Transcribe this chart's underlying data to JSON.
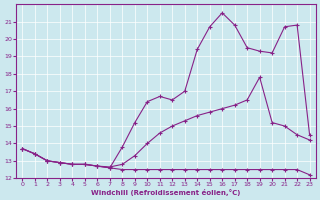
{
  "xlabel": "Windchill (Refroidissement éolien,°C)",
  "background_color": "#cce8ee",
  "line_color": "#882288",
  "xlim": [
    -0.5,
    23.5
  ],
  "ylim": [
    12,
    22
  ],
  "yticks": [
    12,
    13,
    14,
    15,
    16,
    17,
    18,
    19,
    20,
    21
  ],
  "xticks": [
    0,
    1,
    2,
    3,
    4,
    5,
    6,
    7,
    8,
    9,
    10,
    11,
    12,
    13,
    14,
    15,
    16,
    17,
    18,
    19,
    20,
    21,
    22,
    23
  ],
  "line1_x": [
    0,
    1,
    2,
    3,
    4,
    5,
    6,
    7,
    8,
    9,
    10,
    11,
    12,
    13,
    14,
    15,
    16,
    17,
    18,
    19,
    20,
    21,
    22,
    23
  ],
  "line1_y": [
    13.7,
    13.4,
    13.0,
    12.9,
    12.8,
    12.8,
    12.7,
    12.6,
    12.5,
    12.5,
    12.5,
    12.5,
    12.5,
    12.5,
    12.5,
    12.5,
    12.5,
    12.5,
    12.5,
    12.5,
    12.5,
    12.5,
    12.5,
    12.2
  ],
  "line2_x": [
    0,
    1,
    2,
    3,
    4,
    5,
    6,
    7,
    8,
    9,
    10,
    11,
    12,
    13,
    14,
    15,
    16,
    17,
    18,
    19,
    20,
    21,
    22,
    23
  ],
  "line2_y": [
    13.7,
    13.4,
    13.0,
    12.9,
    12.8,
    12.8,
    12.7,
    12.65,
    12.8,
    13.3,
    14.0,
    14.6,
    15.0,
    15.3,
    15.6,
    15.8,
    16.0,
    16.2,
    16.5,
    17.8,
    15.2,
    15.0,
    14.5,
    14.2
  ],
  "line3_x": [
    0,
    1,
    2,
    3,
    4,
    5,
    6,
    7,
    8,
    9,
    10,
    11,
    12,
    13,
    14,
    15,
    16,
    17,
    18,
    19,
    20,
    21,
    22,
    23
  ],
  "line3_y": [
    13.7,
    13.4,
    13.0,
    12.9,
    12.8,
    12.8,
    12.7,
    12.6,
    13.8,
    15.2,
    16.4,
    16.7,
    16.5,
    17.0,
    19.4,
    20.7,
    21.5,
    20.8,
    19.5,
    19.3,
    19.2,
    20.7,
    20.8,
    14.5
  ]
}
